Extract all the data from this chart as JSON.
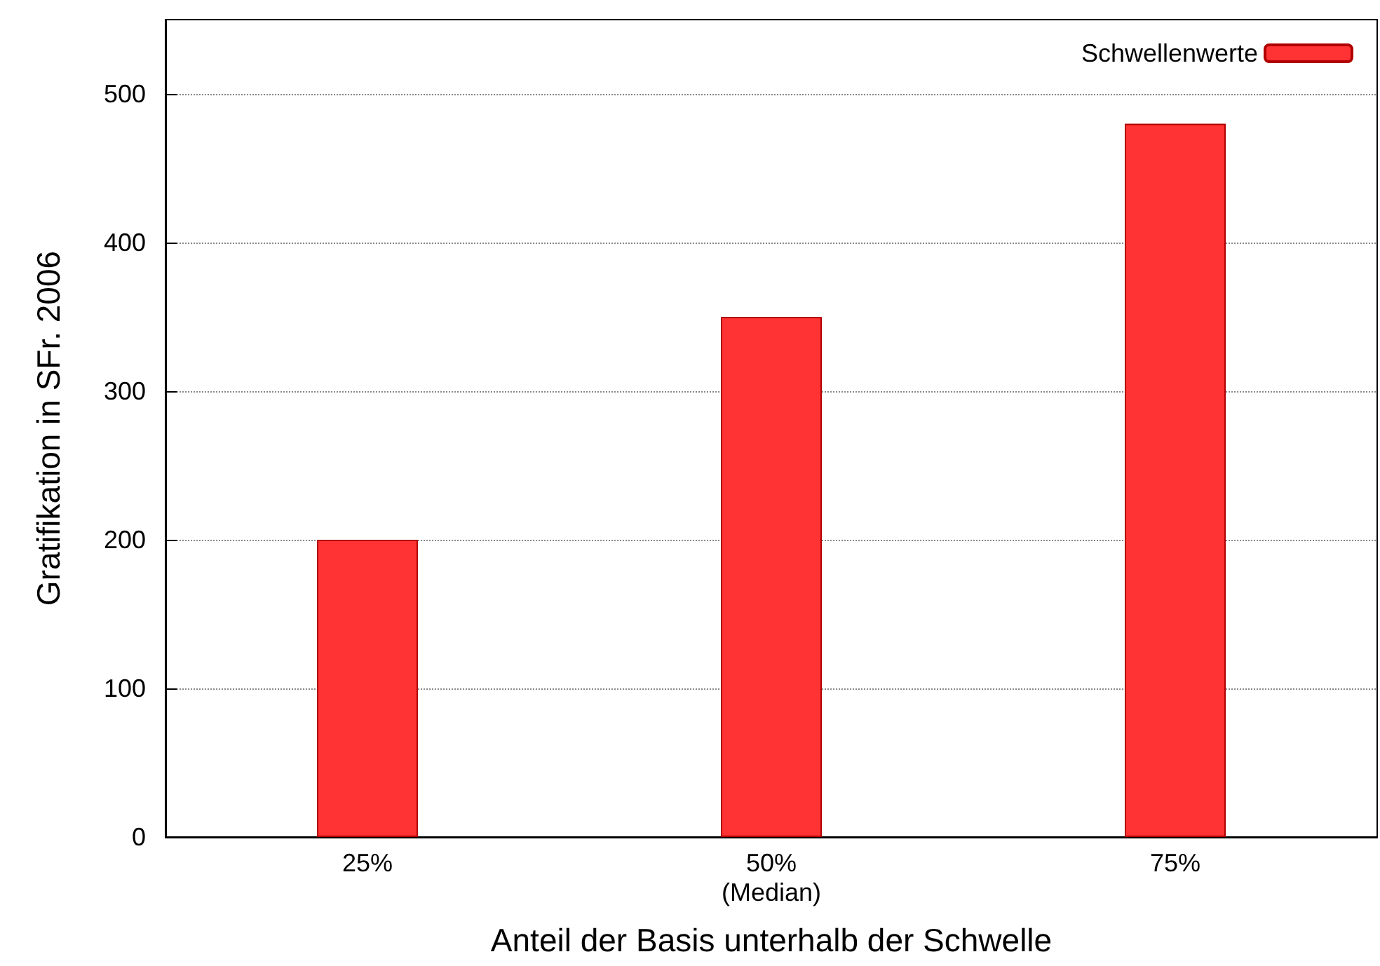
{
  "chart_data": {
    "type": "bar",
    "xlabel": "Anteil der Basis unterhalb der Schwelle",
    "ylabel": "Gratifikation in SFr. 2006",
    "categories": [
      "25%",
      "50%\n(Median)",
      "75%"
    ],
    "series": [
      {
        "name": "Schwellenwerte",
        "color": "#ff3333",
        "values": [
          200,
          350,
          480
        ]
      }
    ],
    "ylim": [
      0,
      550
    ],
    "yticks": [
      0,
      100,
      200,
      300,
      400,
      500
    ],
    "grid": "y",
    "legend": "top right"
  }
}
